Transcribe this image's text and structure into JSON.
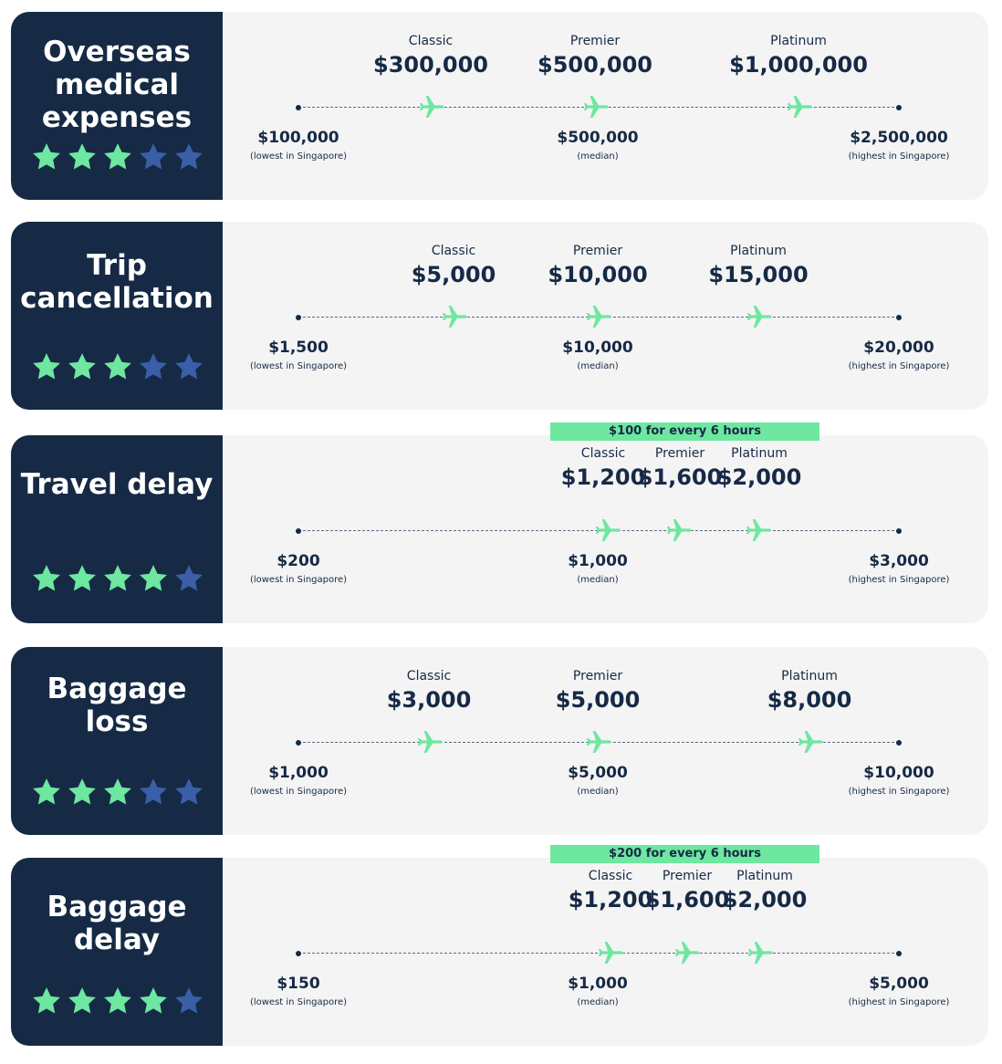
{
  "cards": [
    {
      "title": "Overseas medical expenses",
      "rating": 3,
      "plans": [
        {
          "name": "Classic",
          "amount": "$300,000"
        },
        {
          "name": "Premier",
          "amount": "$500,000"
        },
        {
          "name": "Platinum",
          "amount": "$1,000,000"
        }
      ],
      "low": {
        "amount": "$100,000",
        "note": "(lowest in Singapore)"
      },
      "median": {
        "amount": "$500,000",
        "note": "(median)"
      },
      "high": {
        "amount": "$2,500,000",
        "note": "(highest in Singapore)"
      }
    },
    {
      "title": "Trip cancellation",
      "rating": 3,
      "plans": [
        {
          "name": "Classic",
          "amount": "$5,000"
        },
        {
          "name": "Premier",
          "amount": "$10,000"
        },
        {
          "name": "Platinum",
          "amount": "$15,000"
        }
      ],
      "low": {
        "amount": "$1,500",
        "note": "(lowest in Singapore)"
      },
      "median": {
        "amount": "$10,000",
        "note": "(median)"
      },
      "high": {
        "amount": "$20,000",
        "note": "(highest in Singapore)"
      }
    },
    {
      "title": "Travel delay",
      "rating": 4,
      "banner": "$100 for every 6 hours",
      "plans": [
        {
          "name": "Classic",
          "amount": "$1,200"
        },
        {
          "name": "Premier",
          "amount": "$1,600"
        },
        {
          "name": "Platinum",
          "amount": "$2,000"
        }
      ],
      "low": {
        "amount": "$200",
        "note": "(lowest in Singapore)"
      },
      "median": {
        "amount": "$1,000",
        "note": "(median)"
      },
      "high": {
        "amount": "$3,000",
        "note": "(highest in Singapore)"
      }
    },
    {
      "title": "Baggage loss",
      "rating": 3,
      "plans": [
        {
          "name": "Classic",
          "amount": "$3,000"
        },
        {
          "name": "Premier",
          "amount": "$5,000"
        },
        {
          "name": "Platinum",
          "amount": "$8,000"
        }
      ],
      "low": {
        "amount": "$1,000",
        "note": "(lowest in Singapore)"
      },
      "median": {
        "amount": "$5,000",
        "note": "(median)"
      },
      "high": {
        "amount": "$10,000",
        "note": "(highest in Singapore)"
      }
    },
    {
      "title": "Baggage delay",
      "rating": 4,
      "banner": "$200 for every 6 hours",
      "plans": [
        {
          "name": "Classic",
          "amount": "$1,200"
        },
        {
          "name": "Premier",
          "amount": "$1,600"
        },
        {
          "name": "Platinum",
          "amount": "$2,000"
        }
      ],
      "low": {
        "amount": "$150",
        "note": "(lowest in Singapore)"
      },
      "median": {
        "amount": "$1,000",
        "note": "(median)"
      },
      "high": {
        "amount": "$5,000",
        "note": "(highest in Singapore)"
      }
    }
  ]
}
